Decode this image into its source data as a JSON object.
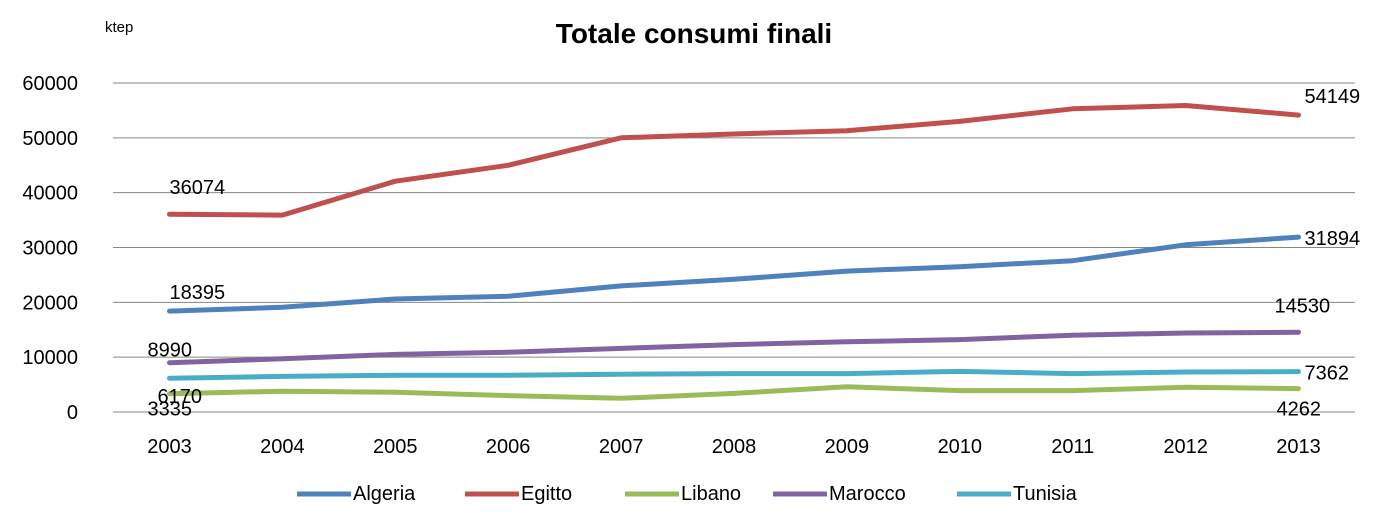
{
  "chart_data": {
    "type": "line",
    "title": "Totale consumi finali",
    "unit_label": "ktep",
    "xlabel": "",
    "ylabel": "",
    "ylim": [
      0,
      60000
    ],
    "yticks": [
      "0",
      "10000",
      "20000",
      "30000",
      "40000",
      "50000",
      "60000"
    ],
    "categories": [
      "2003",
      "2004",
      "2005",
      "2006",
      "2007",
      "2008",
      "2009",
      "2010",
      "2011",
      "2012",
      "2013"
    ],
    "grid": true,
    "legend_position": "bottom",
    "series": [
      {
        "name": "Algeria",
        "color": "#4f81bd",
        "values": [
          18395,
          19100,
          20600,
          21100,
          23000,
          24200,
          25700,
          26500,
          27600,
          30500,
          31894
        ],
        "start_label": "18395",
        "end_label": "31894"
      },
      {
        "name": "Egitto",
        "color": "#c0504d",
        "values": [
          36074,
          35900,
          42100,
          45000,
          50000,
          50700,
          51300,
          53000,
          55300,
          55900,
          54149
        ],
        "start_label": "36074",
        "end_label": "54149"
      },
      {
        "name": "Libano",
        "color": "#9bbb59",
        "values": [
          3335,
          3800,
          3600,
          3000,
          2500,
          3400,
          4600,
          3900,
          3900,
          4500,
          4262
        ],
        "start_label": "3335",
        "end_label": "4262"
      },
      {
        "name": "Marocco",
        "color": "#8064a2",
        "values": [
          8990,
          9700,
          10500,
          10900,
          11600,
          12300,
          12800,
          13200,
          14000,
          14400,
          14530
        ],
        "start_label": "8990",
        "end_label": "14530"
      },
      {
        "name": "Tunisia",
        "color": "#4bacc6",
        "values": [
          6170,
          6500,
          6700,
          6700,
          6900,
          7000,
          7000,
          7400,
          7000,
          7300,
          7362
        ],
        "start_label": "6170",
        "end_label": "7362"
      }
    ]
  }
}
